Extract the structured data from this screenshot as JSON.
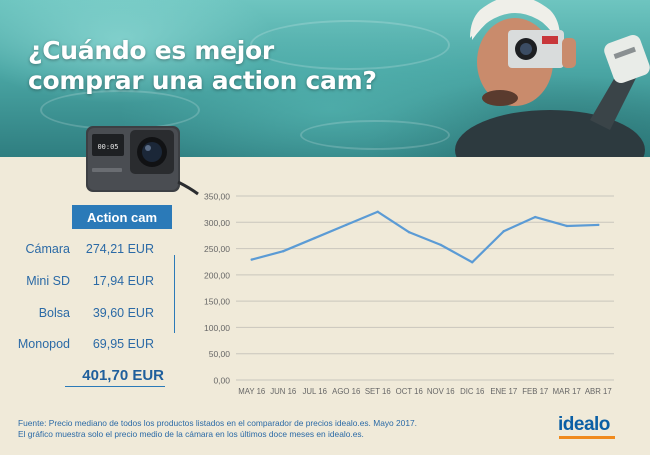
{
  "hero": {
    "title_line1": "¿Cuándo es mejor",
    "title_line2": "comprar una action cam?"
  },
  "product": {
    "badge_label": "Action cam",
    "camera_screen_text": "00:05"
  },
  "costs": {
    "items": [
      {
        "label": "Cámara",
        "value": "274,21 EUR"
      },
      {
        "label": "Mini SD",
        "value": "17,94 EUR"
      },
      {
        "label": "Bolsa",
        "value": "39,60 EUR"
      },
      {
        "label": "Monopod",
        "value": "69,95 EUR"
      }
    ],
    "total": "401,70 EUR"
  },
  "chart_data": {
    "type": "line",
    "categories": [
      "MAY 16",
      "JUN 16",
      "JUL 16",
      "AGO 16",
      "SET 16",
      "OCT 16",
      "NOV 16",
      "DIC 16",
      "ENE 17",
      "FEB 17",
      "MAR 17",
      "ABR 17"
    ],
    "values": [
      229,
      245,
      270,
      295,
      320,
      281,
      257,
      224,
      283,
      310,
      293,
      295
    ],
    "yticks": [
      "0,00",
      "50,00",
      "100,00",
      "150,00",
      "200,00",
      "250,00",
      "300,00",
      "350,00"
    ],
    "ylim": [
      0,
      350
    ],
    "grid": true,
    "line_color": "#5b9bd5",
    "grid_color": "#c9c6bd",
    "axis_text_color": "#666666"
  },
  "footer": {
    "source_line1": "Fuente: Precio mediano de todos los productos listados en el comparador de precios idealo.es. Mayo 2017.",
    "source_line2": "El gráfico muestra solo el precio medio de la cámara en los últimos doce meses en idealo.es.",
    "logo_text": "idealo",
    "logo_accent": "#f08a1c"
  }
}
